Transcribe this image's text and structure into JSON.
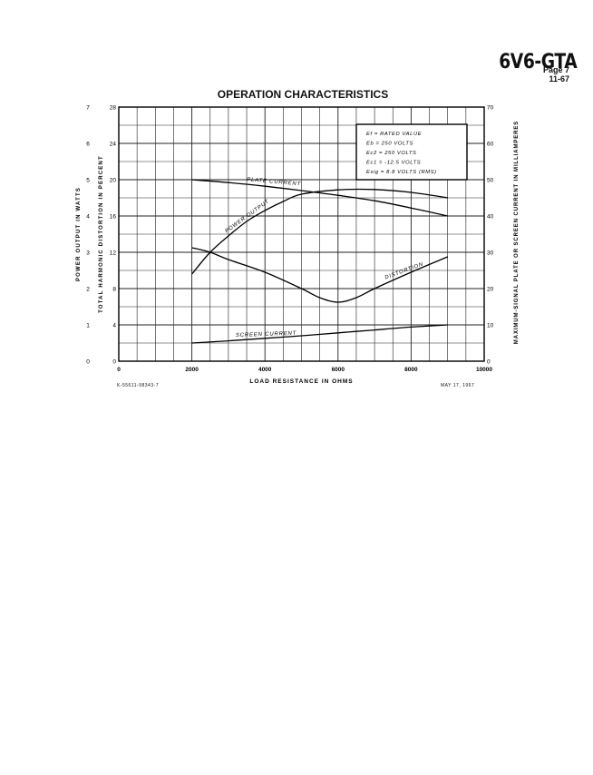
{
  "header": {
    "tube_type": "6V6-GTA",
    "page": "Page 7",
    "revision": "11-67"
  },
  "footer": {
    "drawing_no": "K-55611-98343-7",
    "date": "MAY 17, 1967"
  },
  "chart_data": {
    "type": "line",
    "title": "OPERATION CHARACTERISTICS",
    "xlabel": "LOAD RESISTANCE IN OHMS",
    "ylabel_left_outer": "POWER OUTPUT IN WATTS",
    "ylabel_left_inner": "TOTAL HARMONIC DISTORTION IN PERCENT",
    "ylabel_right": "MAXIMUM-SIGNAL PLATE OR SCREEN CURRENT IN MILLIAMPERES",
    "xlim": [
      0,
      10000
    ],
    "x_ticks": [
      "0",
      "2000",
      "4000",
      "6000",
      "8000",
      "10000"
    ],
    "y_power_ticks": [
      "0",
      "1",
      "2",
      "3",
      "4",
      "5",
      "6",
      "7"
    ],
    "y_distortion_ticks": [
      "0",
      "4",
      "8",
      "12",
      "16",
      "20",
      "24",
      "28"
    ],
    "y_current_ticks": [
      "0",
      "10",
      "20",
      "30",
      "40",
      "50",
      "60",
      "70"
    ],
    "grid": true,
    "conditions": [
      "Ef = RATED VALUE",
      "Eb = 250 VOLTS",
      "Ec2 = 250 VOLTS",
      "Ec1 = -12.5 VOLTS",
      "Esig = 8.8 VOLTS (RMS)"
    ],
    "series": [
      {
        "name": "PLATE CURRENT",
        "axis": "current_mA",
        "x": [
          2000,
          3000,
          4000,
          5000,
          6000,
          7000,
          8000,
          9000
        ],
        "y": [
          50,
          49.2,
          48.2,
          47,
          45.7,
          44.2,
          42.2,
          40
        ]
      },
      {
        "name": "POWER OUTPUT",
        "axis": "power_W",
        "x": [
          2000,
          2500,
          3000,
          3500,
          4000,
          4500,
          5000,
          6000,
          7000,
          8000,
          9000
        ],
        "y": [
          2.4,
          3.0,
          3.45,
          3.85,
          4.15,
          4.4,
          4.6,
          4.72,
          4.73,
          4.65,
          4.5
        ]
      },
      {
        "name": "DISTORTION",
        "axis": "distortion_pct",
        "x": [
          2000,
          2500,
          3000,
          4000,
          5000,
          5500,
          6000,
          6500,
          7000,
          8000,
          9000
        ],
        "y": [
          12.5,
          12.0,
          11.2,
          9.8,
          8.0,
          7.0,
          6.5,
          7.0,
          8.0,
          9.8,
          11.5
        ]
      },
      {
        "name": "SCREEN CURRENT",
        "axis": "current_mA",
        "x": [
          2000,
          3000,
          4000,
          5000,
          6000,
          7000,
          8000,
          9000
        ],
        "y": [
          5.0,
          5.6,
          6.3,
          7.0,
          7.8,
          8.6,
          9.4,
          10.0
        ]
      }
    ]
  }
}
